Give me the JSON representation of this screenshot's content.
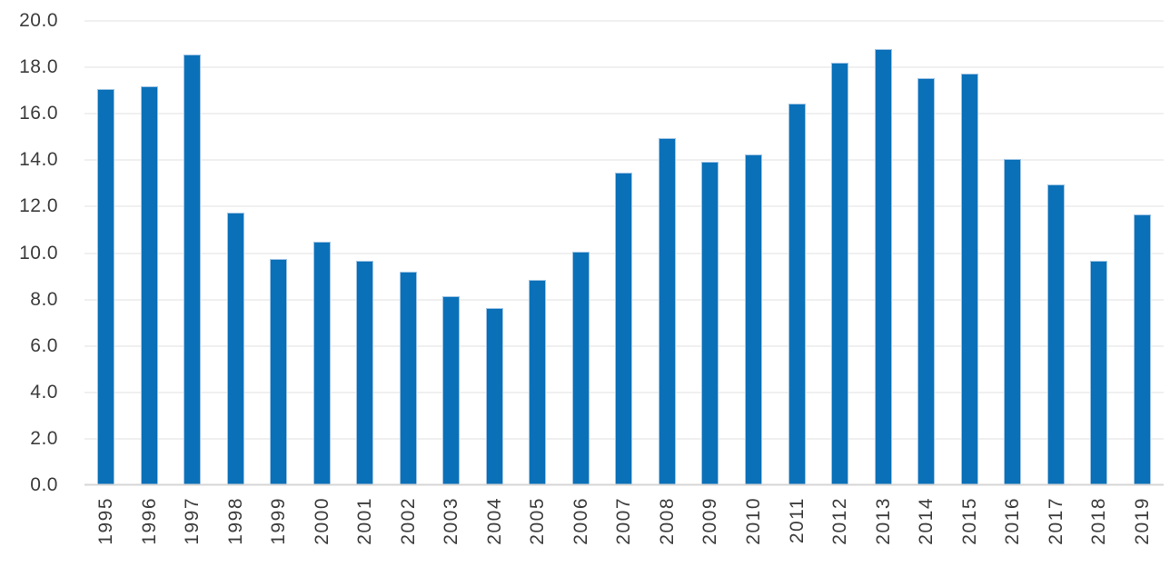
{
  "chart_data": {
    "type": "bar",
    "title": "",
    "xlabel": "",
    "ylabel": "",
    "categories": [
      "1995",
      "1996",
      "1997",
      "1998",
      "1999",
      "2000",
      "2001",
      "2002",
      "2003",
      "2004",
      "2005",
      "2006",
      "2007",
      "2008",
      "2009",
      "2010",
      "2011",
      "2012",
      "2013",
      "2014",
      "2015",
      "2016",
      "2017",
      "2018",
      "2019"
    ],
    "values": [
      17.05,
      17.2,
      18.55,
      11.75,
      9.75,
      10.5,
      9.65,
      9.2,
      8.15,
      7.65,
      8.85,
      10.05,
      13.45,
      14.95,
      13.95,
      14.25,
      16.45,
      18.2,
      18.8,
      17.55,
      17.75,
      14.05,
      12.95,
      9.65,
      11.65
    ],
    "ylim": [
      0,
      20
    ],
    "ytick_interval": 2,
    "ytick_labels": [
      "20.0",
      "18.0",
      "16.0",
      "14.0",
      "12.0",
      "10.0",
      "8.0",
      "6.0",
      "4.0",
      "2.0",
      "0.0"
    ],
    "grid": "horizontal",
    "legend": "none",
    "x_label_rotation_deg": -90,
    "colors": {
      "bar_fill": "#0a70b8",
      "bar_edge": "#9ec4e4",
      "gridline": "#e2e2e2",
      "axis_line": "#d6d6d6",
      "tick_text": "#3d3d3d",
      "background": "#ffffff"
    }
  }
}
